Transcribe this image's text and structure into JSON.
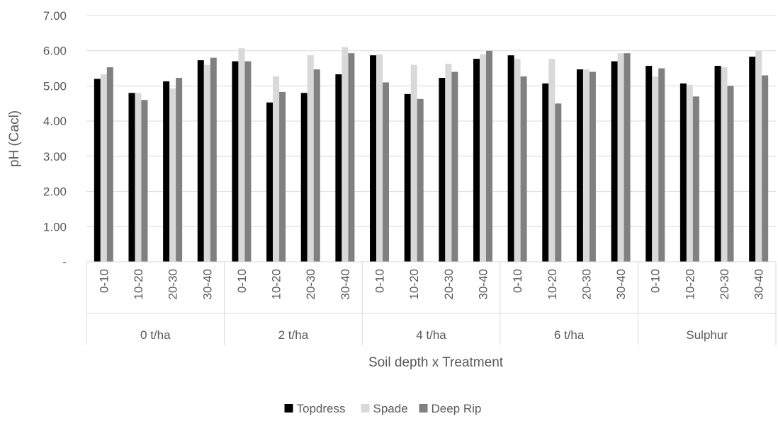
{
  "chart_data": {
    "type": "bar",
    "title": "",
    "xlabel": "Soil depth x Treatment",
    "ylabel": "pH (Cacl)",
    "ylim": [
      0,
      7
    ],
    "y_ticks": [
      "-",
      "1.00",
      "2.00",
      "3.00",
      "4.00",
      "5.00",
      "6.00",
      "7.00"
    ],
    "grid": "horizontal",
    "legend_position": "bottom",
    "groups": [
      "0 t/ha",
      "2 t/ha",
      "4 t/ha",
      "6 t/ha",
      "Sulphur"
    ],
    "depths": [
      "0-10",
      "10-20",
      "20-30",
      "30-40"
    ],
    "categories": [
      "0-10",
      "10-20",
      "20-30",
      "30-40",
      "0-10",
      "10-20",
      "20-30",
      "30-40",
      "0-10",
      "10-20",
      "20-30",
      "30-40",
      "0-10",
      "10-20",
      "20-30",
      "30-40",
      "0-10",
      "10-20",
      "20-30",
      "30-40"
    ],
    "series": [
      {
        "name": "Topdress",
        "color": "#000000",
        "values": [
          5.2,
          4.8,
          5.13,
          5.73,
          5.7,
          4.53,
          4.8,
          5.33,
          5.87,
          4.77,
          5.23,
          5.77,
          5.87,
          5.07,
          5.47,
          5.7,
          5.57,
          5.07,
          5.57,
          5.83
        ]
      },
      {
        "name": "Spade",
        "color": "#d9d9d9",
        "values": [
          5.33,
          4.8,
          4.93,
          5.6,
          6.07,
          5.27,
          5.87,
          6.1,
          5.9,
          5.6,
          5.63,
          5.9,
          5.77,
          5.77,
          5.47,
          5.93,
          5.27,
          5.03,
          5.53,
          6.0
        ]
      },
      {
        "name": "Deep Rip",
        "color": "#808080",
        "values": [
          5.53,
          4.6,
          5.23,
          5.8,
          5.7,
          4.83,
          5.47,
          5.93,
          5.1,
          4.63,
          5.4,
          6.0,
          5.27,
          4.5,
          5.4,
          5.93,
          5.5,
          4.7,
          5.0,
          5.3
        ]
      }
    ]
  }
}
